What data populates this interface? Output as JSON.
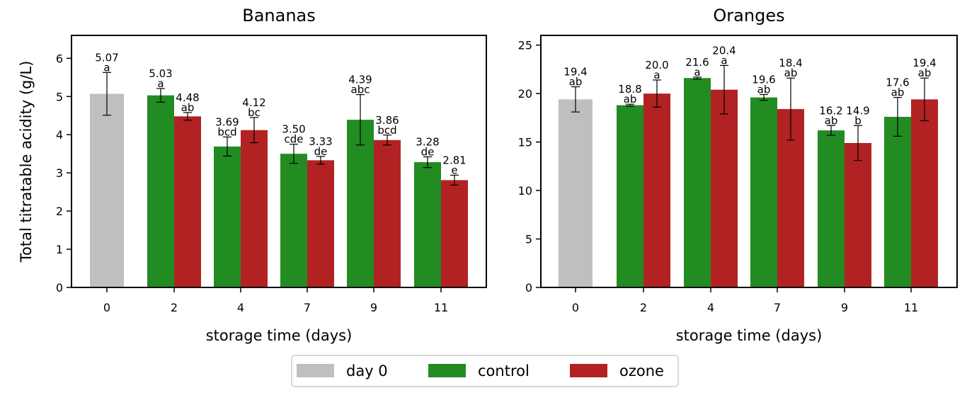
{
  "colors": {
    "day0": "#bfbfbf",
    "control": "#228b22",
    "ozone": "#b22222"
  },
  "legend": [
    {
      "key": "day0",
      "label": "day 0"
    },
    {
      "key": "control",
      "label": "control"
    },
    {
      "key": "ozone",
      "label": "ozone"
    }
  ],
  "chart_data": [
    {
      "type": "bar",
      "title": "Bananas",
      "xlabel": "storage time (days)",
      "ylabel": "Total titratable acidity (g/L)",
      "ylim": [
        0,
        6.6
      ],
      "yticks": [
        0,
        1,
        2,
        3,
        4,
        5,
        6
      ],
      "categories": [
        "0",
        "2",
        "4",
        "7",
        "9",
        "11"
      ],
      "series": [
        {
          "name": "day 0",
          "key": "day0",
          "points": [
            {
              "cat": 0,
              "value": 5.07,
              "err": 0.56,
              "label": "5.07",
              "letter": "a"
            }
          ]
        },
        {
          "name": "control",
          "key": "control",
          "points": [
            {
              "cat": 1,
              "value": 5.03,
              "err": 0.18,
              "label": "5.03",
              "letter": "a"
            },
            {
              "cat": 2,
              "value": 3.69,
              "err": 0.25,
              "label": "3.69",
              "letter": "bcd"
            },
            {
              "cat": 3,
              "value": 3.5,
              "err": 0.25,
              "label": "3.50",
              "letter": "cde"
            },
            {
              "cat": 4,
              "value": 4.39,
              "err": 0.66,
              "label": "4.39",
              "letter": "abc"
            },
            {
              "cat": 5,
              "value": 3.28,
              "err": 0.14,
              "label": "3.28",
              "letter": "de"
            }
          ]
        },
        {
          "name": "ozone",
          "key": "ozone",
          "points": [
            {
              "cat": 1,
              "value": 4.48,
              "err": 0.1,
              "label": "4.48",
              "letter": "ab"
            },
            {
              "cat": 2,
              "value": 4.12,
              "err": 0.33,
              "label": "4.12",
              "letter": "bc"
            },
            {
              "cat": 3,
              "value": 3.33,
              "err": 0.1,
              "label": "3.33",
              "letter": "de"
            },
            {
              "cat": 4,
              "value": 3.86,
              "err": 0.13,
              "label": "3.86",
              "letter": "bcd"
            },
            {
              "cat": 5,
              "value": 2.81,
              "err": 0.13,
              "label": "2.81",
              "letter": "e"
            }
          ]
        }
      ]
    },
    {
      "type": "bar",
      "title": "Oranges",
      "xlabel": "storage time (days)",
      "ylabel": "",
      "ylim": [
        0,
        26
      ],
      "yticks": [
        0,
        5,
        10,
        15,
        20,
        25
      ],
      "categories": [
        "0",
        "2",
        "4",
        "7",
        "9",
        "11"
      ],
      "series": [
        {
          "name": "day 0",
          "key": "day0",
          "points": [
            {
              "cat": 0,
              "value": 19.4,
              "err": 1.3,
              "label": "19.4",
              "letter": "ab"
            }
          ]
        },
        {
          "name": "control",
          "key": "control",
          "points": [
            {
              "cat": 1,
              "value": 18.8,
              "err": 0.1,
              "label": "18.8",
              "letter": "ab"
            },
            {
              "cat": 2,
              "value": 21.6,
              "err": 0.1,
              "label": "21.6",
              "letter": "a"
            },
            {
              "cat": 3,
              "value": 19.6,
              "err": 0.3,
              "label": "19.6",
              "letter": "ab"
            },
            {
              "cat": 4,
              "value": 16.2,
              "err": 0.5,
              "label": "16.2",
              "letter": "ab"
            },
            {
              "cat": 5,
              "value": 17.6,
              "err": 2.0,
              "label": "17.6",
              "letter": "ab"
            }
          ]
        },
        {
          "name": "ozone",
          "key": "ozone",
          "points": [
            {
              "cat": 1,
              "value": 20.0,
              "err": 1.4,
              "label": "20.0",
              "letter": "a"
            },
            {
              "cat": 2,
              "value": 20.4,
              "err": 2.5,
              "label": "20.4",
              "letter": "a"
            },
            {
              "cat": 3,
              "value": 18.4,
              "err": 3.2,
              "label": "18.4",
              "letter": "ab"
            },
            {
              "cat": 4,
              "value": 14.9,
              "err": 1.8,
              "label": "14.9",
              "letter": "b"
            },
            {
              "cat": 5,
              "value": 19.4,
              "err": 2.2,
              "label": "19.4",
              "letter": "ab"
            }
          ]
        }
      ]
    }
  ]
}
